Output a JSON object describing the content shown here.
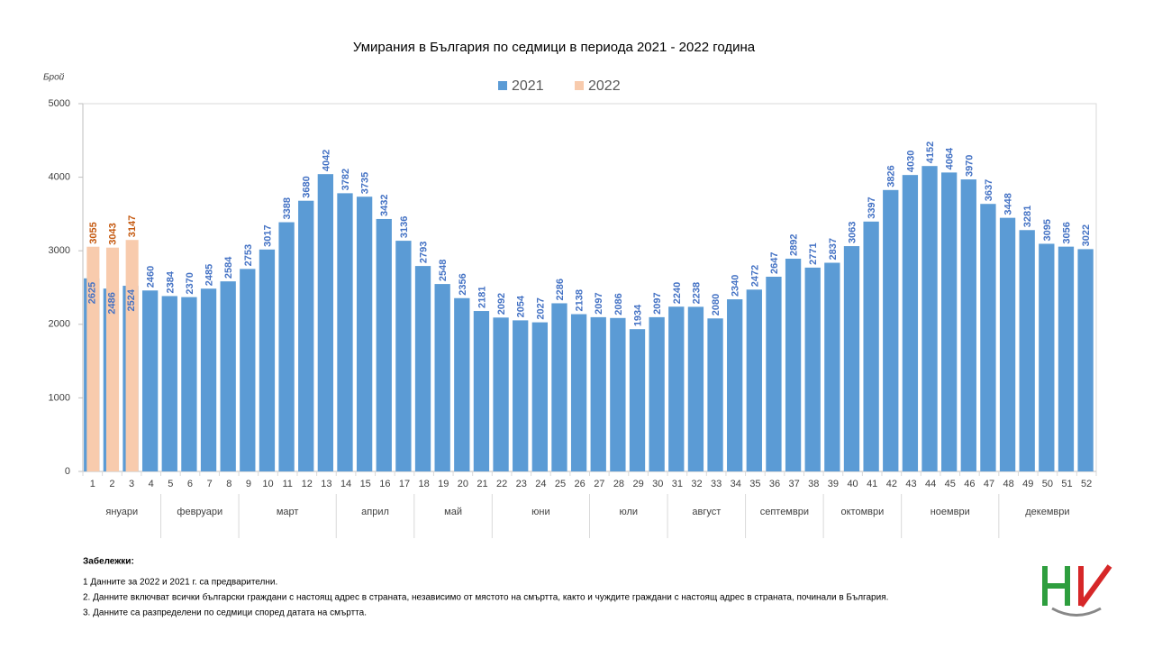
{
  "chart_data": {
    "type": "bar",
    "title": "Умирания в България по седмици в периода 2021 - 2022 година",
    "y_label": "Брой",
    "categories": [
      "1",
      "2",
      "3",
      "4",
      "5",
      "6",
      "7",
      "8",
      "9",
      "10",
      "11",
      "12",
      "13",
      "14",
      "15",
      "16",
      "17",
      "18",
      "19",
      "20",
      "21",
      "22",
      "23",
      "24",
      "25",
      "26",
      "27",
      "28",
      "29",
      "30",
      "31",
      "32",
      "33",
      "34",
      "35",
      "36",
      "37",
      "38",
      "39",
      "40",
      "41",
      "42",
      "43",
      "44",
      "45",
      "46",
      "47",
      "48",
      "49",
      "50",
      "51",
      "52"
    ],
    "groups": [
      {
        "label": "януари",
        "first": "1",
        "last": "4"
      },
      {
        "label": "февруари",
        "first": "5",
        "last": "8"
      },
      {
        "label": "март",
        "first": "9",
        "last": "13"
      },
      {
        "label": "април",
        "first": "14",
        "last": "17"
      },
      {
        "label": "май",
        "first": "18",
        "last": "21"
      },
      {
        "label": "юни",
        "first": "22",
        "last": "26"
      },
      {
        "label": "юли",
        "first": "27",
        "last": "30"
      },
      {
        "label": "август",
        "first": "31",
        "last": "34"
      },
      {
        "label": "септември",
        "first": "35",
        "last": "38"
      },
      {
        "label": "октомври",
        "first": "39",
        "last": "42"
      },
      {
        "label": "ноември",
        "first": "43",
        "last": "47"
      },
      {
        "label": "декември",
        "first": "48",
        "last": "52"
      }
    ],
    "series": [
      {
        "name": "2021",
        "color": "#5b9bd5",
        "label_color": "#4472c4",
        "values": [
          2625,
          2486,
          2524,
          2460,
          2384,
          2370,
          2485,
          2584,
          2753,
          3017,
          3388,
          3680,
          4042,
          3782,
          3735,
          3432,
          3136,
          2793,
          2548,
          2356,
          2181,
          2092,
          2054,
          2027,
          2286,
          2138,
          2097,
          2086,
          1934,
          2097,
          2240,
          2238,
          2080,
          2340,
          2472,
          2647,
          2892,
          2771,
          2837,
          3063,
          3397,
          3826,
          4030,
          4152,
          4064,
          3970,
          3637,
          3448,
          3281,
          3095,
          3056,
          3022
        ]
      },
      {
        "name": "2022",
        "color": "#f8cbad",
        "label_color": "#c55a11",
        "values": [
          3055,
          3043,
          3147,
          null,
          null,
          null,
          null,
          null,
          null,
          null,
          null,
          null,
          null,
          null,
          null,
          null,
          null,
          null,
          null,
          null,
          null,
          null,
          null,
          null,
          null,
          null,
          null,
          null,
          null,
          null,
          null,
          null,
          null,
          null,
          null,
          null,
          null,
          null,
          null,
          null,
          null,
          null,
          null,
          null,
          null,
          null,
          null,
          null,
          null,
          null,
          null,
          null
        ]
      }
    ],
    "ylim": [
      0,
      5000
    ],
    "yticks": [
      0,
      1000,
      2000,
      3000,
      4000,
      5000
    ],
    "grid": false,
    "legend": "top",
    "notes_title": "Забележки:",
    "notes": [
      "1   Данните за 2022 и 2021 г. са предварителни.",
      "2. Данните включват всички български граждани с настоящ адрес в страната, независимо от мястото на смъртта, както и чуждите граждани с настоящ адрес в страната, починали в България.",
      "3. Данните са разпределени по седмици според  датата на смъртта."
    ]
  }
}
